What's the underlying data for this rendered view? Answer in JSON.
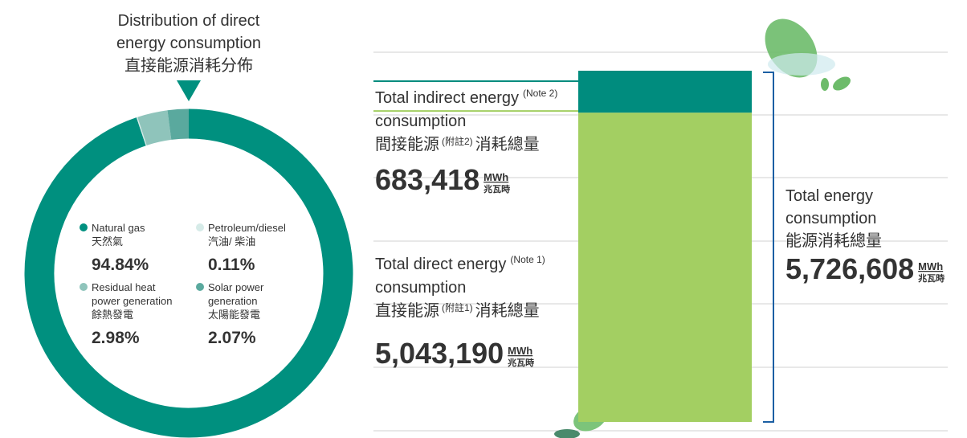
{
  "chart_data": [
    {
      "type": "pie",
      "title": [
        "Distribution of direct",
        "energy consumption",
        "直接能源消耗分佈"
      ],
      "categories": [
        [
          "Natural gas",
          "天然氣"
        ],
        [
          "Petroleum/diesel",
          "汽油/ 柴油"
        ],
        [
          "Residual heat",
          "power generation",
          "餘熱發電"
        ],
        [
          "Solar power",
          "generation",
          "太陽能發電"
        ]
      ],
      "values": [
        94.84,
        0.11,
        2.98,
        2.07
      ],
      "value_labels": [
        "94.84%",
        "0.11%",
        "2.98%",
        "2.07%"
      ],
      "colors": [
        "#00907f",
        "#d6ebe8",
        "#8fc4bb",
        "#5aa99e"
      ]
    },
    {
      "type": "stacked_bar",
      "series": [
        {
          "name": [
            "Total direct energy",
            "consumption"
          ],
          "note": "(Note 1)",
          "name_zh": "直接能源",
          "note_zh": "(附註1)",
          "name_zh_end": "消耗總量",
          "color": "#a3cf62",
          "values": [
            5043190
          ],
          "value_labels": [
            "5,043,190"
          ],
          "unit": "MWh",
          "unit_zh": "兆瓦時"
        },
        {
          "name": [
            "Total indirect energy",
            "consumption"
          ],
          "note": "(Note 2)",
          "name_zh": "間接能源",
          "note_zh": "(附註2)",
          "name_zh_end": "消耗總量",
          "color": "#008c7e",
          "values": [
            683418
          ],
          "value_labels": [
            "683,418"
          ],
          "unit": "MWh",
          "unit_zh": "兆瓦時"
        }
      ],
      "total": {
        "name": [
          "Total energy",
          "consumption",
          "能源消耗總量"
        ],
        "value": 5726608,
        "label": "5,726,608",
        "unit": "MWh",
        "unit_zh": "兆瓦時",
        "color": "#1b5fa3"
      }
    }
  ]
}
